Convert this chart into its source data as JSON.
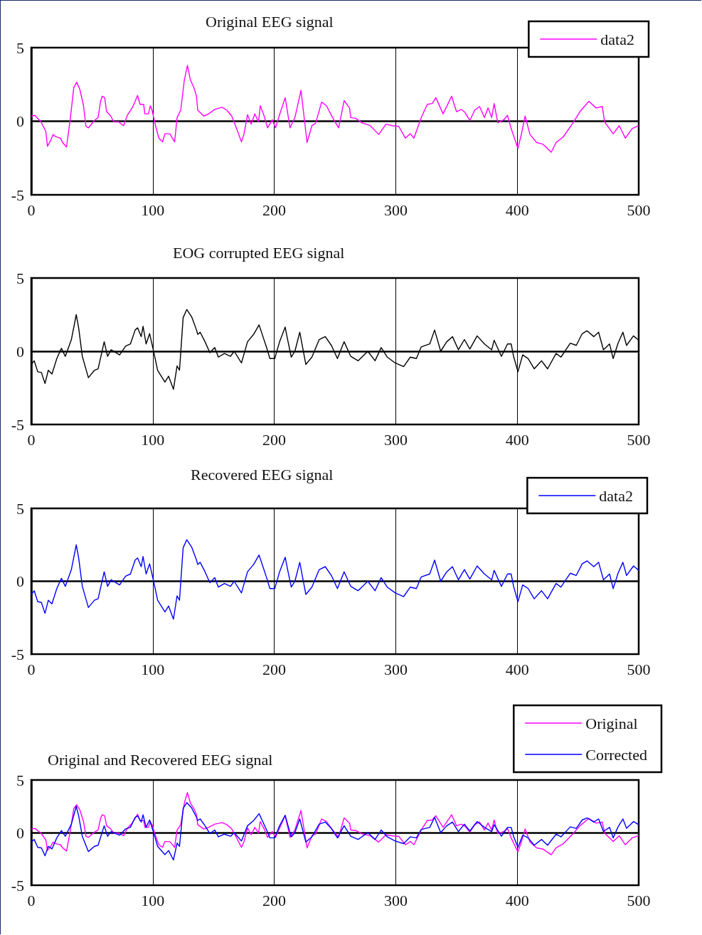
{
  "chart_data": [
    {
      "type": "line",
      "title": "Original EEG signal",
      "xlim": [
        0,
        500
      ],
      "xticks": [
        0,
        100,
        200,
        300,
        400,
        500
      ],
      "ylim": [
        -5,
        5
      ],
      "yticks": [
        -5,
        0,
        5
      ],
      "grid": true,
      "legend": "top right",
      "marker": "none",
      "series": [
        {
          "name": "data2",
          "color": "#ff00ff",
          "x": [
            0,
            3,
            8,
            12,
            13.3,
            16,
            18,
            19.2,
            21,
            24,
            26,
            29,
            32,
            35,
            37.4,
            40,
            43,
            45,
            47,
            52,
            55,
            57,
            58.4,
            60.4,
            62,
            65,
            68,
            72,
            76,
            79,
            83,
            85.5,
            87.5,
            89.5,
            92.5,
            93.5,
            96.4,
            98,
            99.4,
            102.4,
            105,
            108,
            110,
            114,
            118,
            120,
            123,
            126,
            128.5,
            131,
            134,
            136,
            137,
            142,
            146,
            151,
            157,
            161,
            165,
            169,
            173,
            175,
            178,
            181,
            184,
            187,
            188.5,
            191.5,
            194.5,
            198.4,
            201,
            205,
            209,
            213,
            217,
            222,
            227,
            231,
            234,
            239,
            243,
            248,
            253,
            257.5,
            262,
            263,
            267,
            272,
            279,
            286,
            292,
            297,
            302.5,
            308,
            312,
            315,
            321,
            326,
            330,
            333,
            339,
            346,
            350,
            354,
            357,
            361,
            365,
            369,
            373,
            376,
            379,
            381,
            384,
            389,
            392,
            395,
            400.6,
            403.5,
            406.5,
            410.5,
            416,
            421,
            428,
            432,
            438,
            446,
            451.6,
            459,
            465,
            470,
            472,
            479,
            484,
            489,
            494.6,
            500
          ],
          "values": [
            0.35,
            0.4,
            -0.05,
            -0.7,
            -1.7,
            -1.3,
            -0.9,
            -1.0,
            -1.07,
            -1.15,
            -1.47,
            -1.75,
            0.1,
            2.3,
            2.65,
            2.15,
            1.05,
            -0.35,
            -0.45,
            0.05,
            0.25,
            1.35,
            1.7,
            1.6,
            0.65,
            0.4,
            -0.05,
            -0.05,
            -0.3,
            0.4,
            0.9,
            1.35,
            1.75,
            1.15,
            1.15,
            0.5,
            0.5,
            1.05,
            0.75,
            -0.35,
            -1.15,
            -1.4,
            -0.85,
            -0.85,
            -1.4,
            0.25,
            0.75,
            2.8,
            3.8,
            2.8,
            2.25,
            1.7,
            0.75,
            0.35,
            0.5,
            0.8,
            0.95,
            0.75,
            0.35,
            -0.5,
            -1.4,
            -0.9,
            0.45,
            -0.2,
            0.5,
            -0.05,
            1.05,
            0.4,
            -0.45,
            0.1,
            -0.45,
            0.6,
            1.6,
            -0.45,
            0.25,
            2.1,
            -1.45,
            -0.3,
            -0.15,
            1.3,
            1.05,
            0.25,
            -0.45,
            1.4,
            0.9,
            0.25,
            0.2,
            -0.1,
            -0.3,
            -0.9,
            -0.2,
            -0.3,
            -0.35,
            -1.15,
            -0.85,
            -1.15,
            0.25,
            1.15,
            1.2,
            1.6,
            0.5,
            1.7,
            0.65,
            0.8,
            0.6,
            0.05,
            0.75,
            1.0,
            0.25,
            0.9,
            0.25,
            1.2,
            -0.1,
            0.1,
            0.4,
            -0.5,
            -1.85,
            -0.85,
            0.35,
            -0.9,
            -1.45,
            -1.55,
            -2.1,
            -1.45,
            -1.05,
            -0.1,
            0.65,
            1.35,
            0.9,
            1.0,
            -0.05,
            -0.85,
            -0.3,
            -1.15,
            -0.5,
            -0.3
          ]
        }
      ]
    },
    {
      "type": "line",
      "title": "EOG corrupted EEG signal",
      "xlim": [
        0,
        500
      ],
      "xticks": [
        0,
        100,
        200,
        300,
        400,
        500
      ],
      "ylim": [
        -5,
        5
      ],
      "yticks": [
        -5,
        0,
        5
      ],
      "grid": true,
      "legend": false,
      "marker": "none",
      "series": [
        {
          "color": "#000000",
          "x": [
            0,
            2.4,
            5.3,
            8.3,
            11.3,
            14,
            17,
            21,
            24.8,
            28,
            33,
            37,
            39,
            42,
            47,
            52,
            55,
            60,
            62.8,
            65.7,
            72.7,
            77.6,
            81.6,
            85.5,
            87.5,
            90.5,
            92,
            94.5,
            97.4,
            100.4,
            104,
            110,
            113,
            117,
            120,
            122,
            125,
            128,
            132,
            136,
            137,
            139,
            143,
            147,
            151,
            154,
            159,
            164,
            167,
            173,
            178,
            183,
            187.5,
            190.5,
            193.5,
            196.4,
            200.4,
            204.4,
            209,
            211,
            214,
            217,
            221,
            226,
            231,
            237,
            242,
            247,
            252,
            257.5,
            263,
            269,
            277,
            283,
            288,
            293,
            299.6,
            306.5,
            312,
            317,
            321,
            328,
            332,
            337,
            342,
            346.7,
            351.6,
            356.5,
            361,
            367,
            373,
            379,
            381,
            387,
            392,
            395,
            397,
            400.6,
            404.5,
            409,
            414,
            420,
            425,
            432,
            436,
            443.7,
            448.6,
            453.5,
            457.5,
            463,
            467,
            471,
            476,
            479,
            483,
            487,
            490,
            495.7,
            500
          ],
          "values": [
            -0.9,
            -0.65,
            -1.4,
            -1.45,
            -2.2,
            -1.3,
            -1.55,
            -0.5,
            0.2,
            -0.35,
            0.8,
            2.5,
            1.6,
            -0.35,
            -1.8,
            -1.3,
            -1.2,
            0.65,
            -0.35,
            0.1,
            -0.25,
            0.35,
            0.5,
            1.45,
            1.6,
            1.0,
            1.7,
            0.5,
            1.2,
            0.1,
            -1.3,
            -2.1,
            -1.7,
            -2.6,
            -1.0,
            -1.3,
            2.3,
            2.85,
            2.35,
            1.45,
            1.15,
            1.3,
            0.65,
            -0.1,
            0.25,
            -0.4,
            -0.15,
            -0.35,
            0,
            -0.8,
            0.65,
            1.15,
            1.8,
            1.05,
            0.3,
            -0.5,
            -0.5,
            0.65,
            1.65,
            0.8,
            -0.4,
            0,
            1.3,
            -0.9,
            -0.4,
            0.8,
            1.0,
            0.4,
            -0.5,
            0.65,
            -0.35,
            -0.65,
            0,
            -0.65,
            0.25,
            -0.4,
            -0.8,
            -1.05,
            -0.4,
            -0.5,
            0.3,
            0.5,
            1.45,
            0,
            0.65,
            1.0,
            0.1,
            0.8,
            0.15,
            1.05,
            0.5,
            0.1,
            0.75,
            -0.35,
            0.5,
            0.5,
            -0.35,
            -1.4,
            -0.25,
            -0.5,
            -1.2,
            -0.65,
            -1.2,
            -0.15,
            -0.4,
            0.55,
            0.4,
            1.2,
            1.4,
            1.0,
            1.3,
            0.1,
            0.5,
            -0.5,
            0.55,
            1.3,
            0.4,
            1.05,
            0.75
          ]
        }
      ]
    },
    {
      "type": "line",
      "title": "Recovered EEG signal",
      "xlim": [
        0,
        500
      ],
      "xticks": [
        0,
        100,
        200,
        300,
        400,
        500
      ],
      "ylim": [
        -5,
        5
      ],
      "yticks": [
        -5,
        0,
        5
      ],
      "grid": true,
      "legend": "top right",
      "marker": "none",
      "series": [
        {
          "name": "data2",
          "color": "#0000ff",
          "x": [
            0,
            2.4,
            5.3,
            8.3,
            11.3,
            14,
            17,
            21,
            24.8,
            28,
            33,
            37,
            39,
            42,
            47,
            52,
            55,
            60,
            62.8,
            65.7,
            72.7,
            77.6,
            81.6,
            85.5,
            87.5,
            90.5,
            92,
            94.5,
            97.4,
            100.4,
            104,
            110,
            113,
            117,
            120,
            122,
            125,
            128,
            132,
            136,
            137,
            139,
            143,
            147,
            151,
            154,
            159,
            164,
            167,
            173,
            178,
            183,
            187.5,
            190.5,
            193.5,
            196.4,
            200.4,
            204.4,
            209,
            211,
            214,
            217,
            221,
            226,
            231,
            237,
            242,
            247,
            252,
            257.5,
            263,
            269,
            277,
            283,
            288,
            293,
            299.6,
            306.5,
            312,
            317,
            321,
            328,
            332,
            337,
            342,
            346.7,
            351.6,
            356.5,
            361,
            367,
            373,
            379,
            381,
            387,
            392,
            395,
            397,
            400.6,
            404.5,
            409,
            414,
            420,
            425,
            432,
            436,
            443.7,
            448.6,
            453.5,
            457.5,
            463,
            467,
            471,
            476,
            479,
            483,
            487,
            490,
            495.7,
            500
          ],
          "values": [
            -0.9,
            -0.65,
            -1.4,
            -1.45,
            -2.2,
            -1.3,
            -1.55,
            -0.5,
            0.2,
            -0.35,
            0.8,
            2.5,
            1.6,
            -0.35,
            -1.8,
            -1.3,
            -1.2,
            0.65,
            -0.35,
            0.1,
            -0.25,
            0.35,
            0.5,
            1.45,
            1.6,
            1.0,
            1.7,
            0.5,
            1.2,
            0.1,
            -1.3,
            -2.1,
            -1.7,
            -2.6,
            -1.0,
            -1.3,
            2.3,
            2.85,
            2.35,
            1.45,
            1.15,
            1.3,
            0.65,
            -0.1,
            0.25,
            -0.4,
            -0.15,
            -0.35,
            0,
            -0.8,
            0.65,
            1.15,
            1.8,
            1.05,
            0.3,
            -0.5,
            -0.5,
            0.65,
            1.65,
            0.8,
            -0.4,
            0,
            1.3,
            -0.9,
            -0.4,
            0.8,
            1.0,
            0.4,
            -0.5,
            0.65,
            -0.35,
            -0.65,
            0,
            -0.65,
            0.25,
            -0.4,
            -0.8,
            -1.05,
            -0.4,
            -0.5,
            0.3,
            0.5,
            1.45,
            0,
            0.65,
            1.0,
            0.1,
            0.8,
            0.15,
            1.05,
            0.5,
            0.1,
            0.75,
            -0.35,
            0.5,
            0.5,
            -0.35,
            -1.4,
            -0.25,
            -0.5,
            -1.2,
            -0.65,
            -1.2,
            -0.15,
            -0.4,
            0.55,
            0.4,
            1.2,
            1.4,
            1.0,
            1.3,
            0.1,
            0.5,
            -0.5,
            0.55,
            1.3,
            0.4,
            1.05,
            0.75
          ]
        }
      ]
    },
    {
      "type": "line",
      "title": "Original and Recovered EEG signal",
      "xlim": [
        0,
        500
      ],
      "xticks": [
        0,
        100,
        200,
        300,
        400,
        500
      ],
      "ylim": [
        -5,
        5
      ],
      "yticks": [
        -5,
        0,
        5
      ],
      "grid": true,
      "legend": "top right",
      "marker": "none",
      "series": [
        {
          "name": "Original",
          "color": "#ff00ff",
          "x": [
            0,
            3,
            8,
            12,
            13.3,
            16,
            18,
            19.2,
            21,
            24,
            26,
            29,
            32,
            35,
            37.4,
            40,
            43,
            45,
            47,
            52,
            55,
            57,
            58.4,
            60.4,
            62,
            65,
            68,
            72,
            76,
            79,
            83,
            85.5,
            87.5,
            89.5,
            92.5,
            93.5,
            96.4,
            98,
            99.4,
            102.4,
            105,
            108,
            110,
            114,
            118,
            120,
            123,
            126,
            128.5,
            131,
            134,
            136,
            137,
            142,
            146,
            151,
            157,
            161,
            165,
            169,
            173,
            175,
            178,
            181,
            184,
            187,
            188.5,
            191.5,
            194.5,
            198.4,
            201,
            205,
            209,
            213,
            217,
            222,
            227,
            231,
            234,
            239,
            243,
            248,
            253,
            257.5,
            262,
            263,
            267,
            272,
            279,
            286,
            292,
            297,
            302.5,
            308,
            312,
            315,
            321,
            326,
            330,
            333,
            339,
            346,
            350,
            354,
            357,
            361,
            365,
            369,
            373,
            376,
            379,
            381,
            384,
            389,
            392,
            395,
            400.6,
            403.5,
            406.5,
            410.5,
            416,
            421,
            428,
            432,
            438,
            446,
            451.6,
            459,
            465,
            470,
            472,
            479,
            484,
            489,
            494.6,
            500
          ],
          "values": [
            0.35,
            0.4,
            -0.05,
            -0.7,
            -1.7,
            -1.3,
            -0.9,
            -1.0,
            -1.07,
            -1.15,
            -1.47,
            -1.75,
            0.1,
            2.3,
            2.65,
            2.15,
            1.05,
            -0.35,
            -0.45,
            0.05,
            0.25,
            1.35,
            1.7,
            1.6,
            0.65,
            0.4,
            -0.05,
            -0.05,
            -0.3,
            0.4,
            0.9,
            1.35,
            1.75,
            1.15,
            1.15,
            0.5,
            0.5,
            1.05,
            0.75,
            -0.35,
            -1.15,
            -1.4,
            -0.85,
            -0.85,
            -1.4,
            0.25,
            0.75,
            2.8,
            3.8,
            2.8,
            2.25,
            1.7,
            0.75,
            0.35,
            0.5,
            0.8,
            0.95,
            0.75,
            0.35,
            -0.5,
            -1.4,
            -0.9,
            0.45,
            -0.2,
            0.5,
            -0.05,
            1.05,
            0.4,
            -0.45,
            0.1,
            -0.45,
            0.6,
            1.6,
            -0.45,
            0.25,
            2.1,
            -1.45,
            -0.3,
            -0.15,
            1.3,
            1.05,
            0.25,
            -0.45,
            1.4,
            0.9,
            0.25,
            0.2,
            -0.1,
            -0.3,
            -0.9,
            -0.2,
            -0.3,
            -0.35,
            -1.15,
            -0.85,
            -1.15,
            0.25,
            1.15,
            1.2,
            1.6,
            0.5,
            1.7,
            0.65,
            0.8,
            0.6,
            0.05,
            0.75,
            1.0,
            0.25,
            0.9,
            0.25,
            1.2,
            -0.1,
            0.1,
            0.4,
            -0.5,
            -1.85,
            -0.85,
            0.35,
            -0.9,
            -1.45,
            -1.55,
            -2.1,
            -1.45,
            -1.05,
            -0.1,
            0.65,
            1.35,
            0.9,
            1.0,
            -0.05,
            -0.85,
            -0.3,
            -1.15,
            -0.5,
            -0.3
          ]
        },
        {
          "name": "Corrected",
          "color": "#0000ff",
          "x": [
            0,
            2.4,
            5.3,
            8.3,
            11.3,
            14,
            17,
            21,
            24.8,
            28,
            33,
            37,
            39,
            42,
            47,
            52,
            55,
            60,
            62.8,
            65.7,
            72.7,
            77.6,
            81.6,
            85.5,
            87.5,
            90.5,
            92,
            94.5,
            97.4,
            100.4,
            104,
            110,
            113,
            117,
            120,
            122,
            125,
            128,
            132,
            136,
            137,
            139,
            143,
            147,
            151,
            154,
            159,
            164,
            167,
            173,
            178,
            183,
            187.5,
            190.5,
            193.5,
            196.4,
            200.4,
            204.4,
            209,
            211,
            214,
            217,
            221,
            226,
            231,
            237,
            242,
            247,
            252,
            257.5,
            263,
            269,
            277,
            283,
            288,
            293,
            299.6,
            306.5,
            312,
            317,
            321,
            328,
            332,
            337,
            342,
            346.7,
            351.6,
            356.5,
            361,
            367,
            373,
            379,
            381,
            387,
            392,
            395,
            397,
            400.6,
            404.5,
            409,
            414,
            420,
            425,
            432,
            436,
            443.7,
            448.6,
            453.5,
            457.5,
            463,
            467,
            471,
            476,
            479,
            483,
            487,
            490,
            495.7,
            500
          ],
          "values": [
            -0.9,
            -0.65,
            -1.4,
            -1.45,
            -2.2,
            -1.3,
            -1.55,
            -0.5,
            0.2,
            -0.35,
            0.8,
            2.5,
            1.6,
            -0.35,
            -1.8,
            -1.3,
            -1.2,
            0.65,
            -0.35,
            0.1,
            -0.25,
            0.35,
            0.5,
            1.45,
            1.6,
            1.0,
            1.7,
            0.5,
            1.2,
            0.1,
            -1.3,
            -2.1,
            -1.7,
            -2.6,
            -1.0,
            -1.3,
            2.3,
            2.85,
            2.35,
            1.45,
            1.15,
            1.3,
            0.65,
            -0.1,
            0.25,
            -0.4,
            -0.15,
            -0.35,
            0,
            -0.8,
            0.65,
            1.15,
            1.8,
            1.05,
            0.3,
            -0.5,
            -0.5,
            0.65,
            1.65,
            0.8,
            -0.4,
            0,
            1.3,
            -0.9,
            -0.4,
            0.8,
            1.0,
            0.4,
            -0.5,
            0.65,
            -0.35,
            -0.65,
            0,
            -0.65,
            0.25,
            -0.4,
            -0.8,
            -1.05,
            -0.4,
            -0.5,
            0.3,
            0.5,
            1.45,
            0,
            0.65,
            1.0,
            0.1,
            0.8,
            0.15,
            1.05,
            0.5,
            0.1,
            0.75,
            -0.35,
            0.5,
            0.5,
            -0.35,
            -1.4,
            -0.25,
            -0.5,
            -1.2,
            -0.65,
            -1.2,
            -0.15,
            -0.4,
            0.55,
            0.4,
            1.2,
            1.4,
            1.0,
            1.3,
            0.1,
            0.5,
            -0.5,
            0.55,
            1.3,
            0.4,
            1.05,
            0.75
          ]
        }
      ]
    }
  ]
}
